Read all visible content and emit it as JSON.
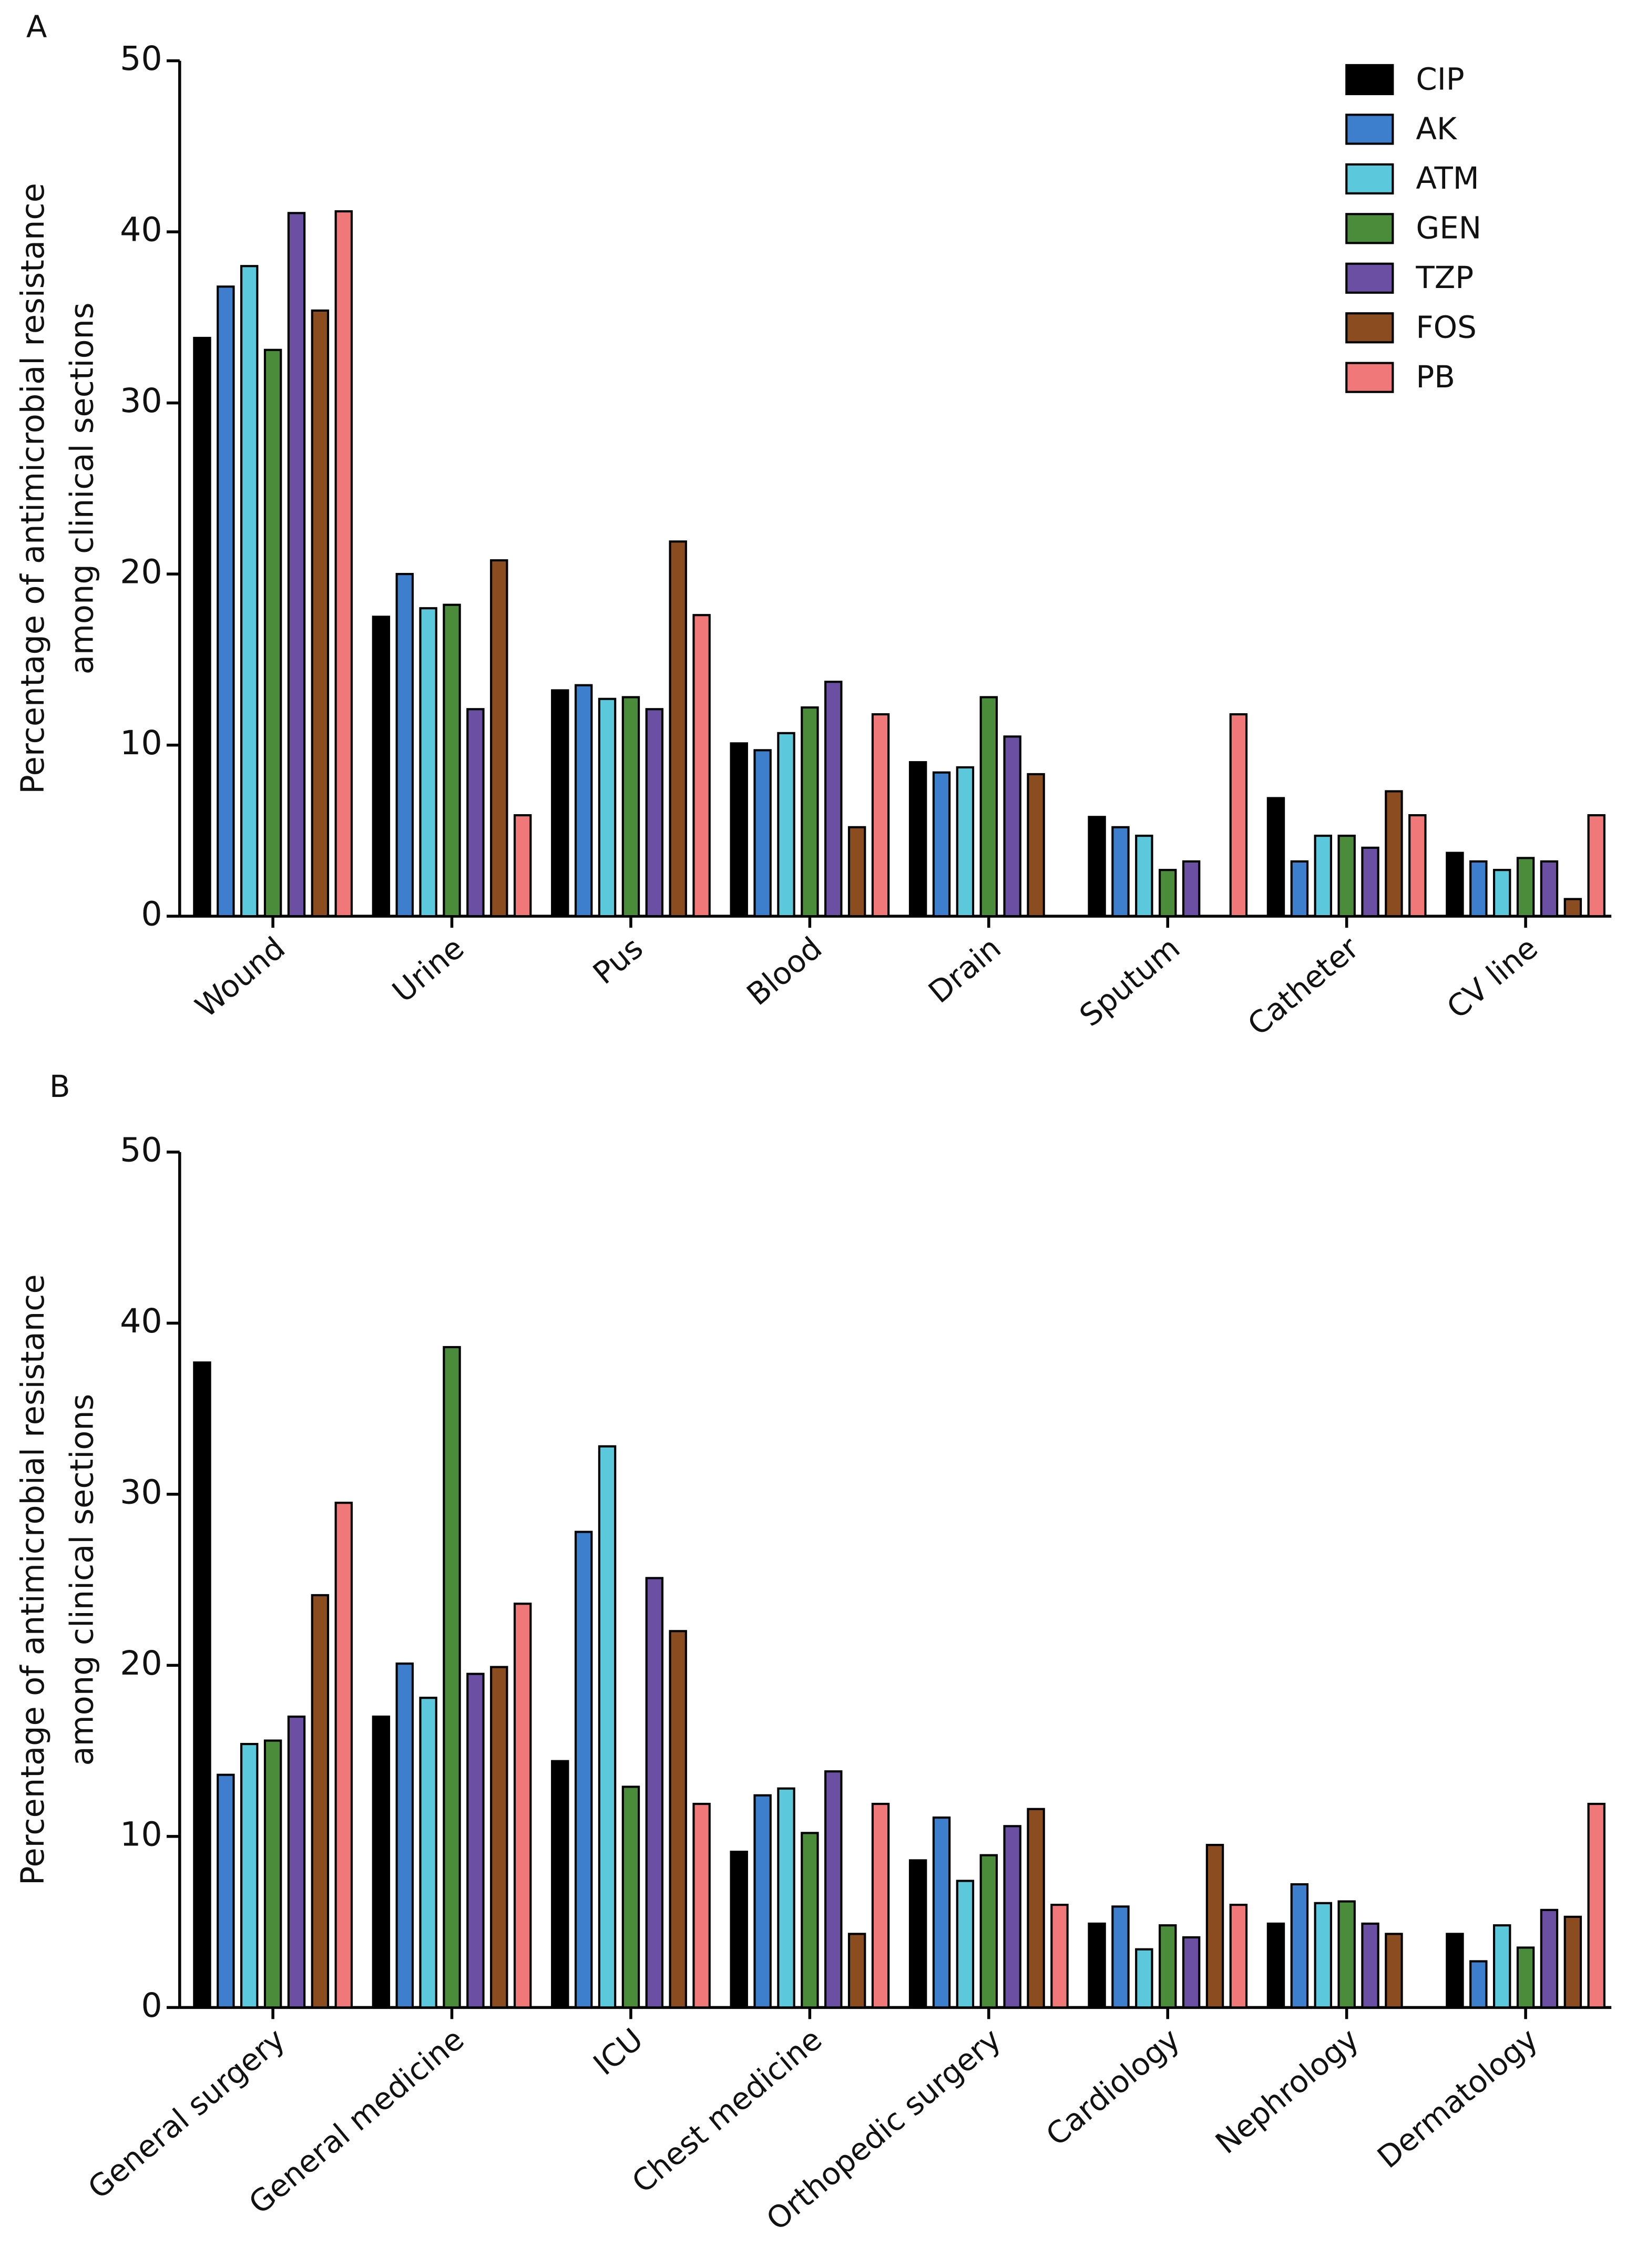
{
  "chart_data": [
    {
      "type": "bar",
      "label": "A",
      "ylabel": [
        "Percentage of antimicrobial resistance",
        "among clinical sections"
      ],
      "categories": [
        "Wound",
        "Urine",
        "Pus",
        "Blood",
        "Drain",
        "Sputum",
        "Catheter",
        "CV line"
      ],
      "ylim": [
        0,
        50
      ],
      "yticks": [
        0,
        10,
        20,
        30,
        40,
        50
      ],
      "legend": "top-right",
      "series": [
        {
          "name": "CIP",
          "color": "#000000",
          "values": [
            33.8,
            17.5,
            13.2,
            10.1,
            9.0,
            5.8,
            6.9,
            3.7
          ]
        },
        {
          "name": "AK",
          "color": "#3d7fcc",
          "values": [
            36.8,
            20.0,
            13.5,
            9.7,
            8.4,
            5.2,
            3.2,
            3.2
          ]
        },
        {
          "name": "ATM",
          "color": "#5bc8db",
          "values": [
            38.0,
            18.0,
            12.7,
            10.7,
            8.7,
            4.7,
            4.7,
            2.7
          ]
        },
        {
          "name": "GEN",
          "color": "#4a8c3a",
          "values": [
            33.1,
            18.2,
            12.8,
            12.2,
            12.8,
            2.7,
            4.7,
            3.4
          ]
        },
        {
          "name": "TZP",
          "color": "#6a4fa3",
          "values": [
            41.1,
            12.1,
            12.1,
            13.7,
            10.5,
            3.2,
            4.0,
            3.2
          ]
        },
        {
          "name": "FOS",
          "color": "#8b4c1f",
          "values": [
            35.4,
            20.8,
            21.9,
            5.2,
            8.3,
            0,
            7.3,
            1.0
          ]
        },
        {
          "name": "PB",
          "color": "#f07878",
          "values": [
            41.2,
            5.9,
            17.6,
            11.8,
            0,
            11.8,
            5.9,
            5.9
          ]
        }
      ]
    },
    {
      "type": "bar",
      "label": "B",
      "ylabel": [
        "Percentage of antimicrobial resistance",
        "among clinical sections"
      ],
      "categories": [
        "General surgery",
        "General medicine",
        "ICU",
        "Chest medicine",
        "Orthopedic surgery",
        "Cardiology",
        "Nephrology",
        "Dermatology"
      ],
      "ylim": [
        0,
        50
      ],
      "yticks": [
        0,
        10,
        20,
        30,
        40,
        50
      ],
      "series": [
        {
          "name": "CIP",
          "color": "#000000",
          "values": [
            37.7,
            17.0,
            14.4,
            9.1,
            8.6,
            4.9,
            4.9,
            4.3
          ]
        },
        {
          "name": "AK",
          "color": "#3d7fcc",
          "values": [
            13.6,
            20.1,
            27.8,
            12.4,
            11.1,
            5.9,
            7.2,
            2.7
          ]
        },
        {
          "name": "ATM",
          "color": "#5bc8db",
          "values": [
            15.4,
            18.1,
            32.8,
            12.8,
            7.4,
            3.4,
            6.1,
            4.8
          ]
        },
        {
          "name": "GEN",
          "color": "#4a8c3a",
          "values": [
            15.6,
            38.6,
            12.9,
            10.2,
            8.9,
            4.8,
            6.2,
            3.5
          ]
        },
        {
          "name": "TZP",
          "color": "#6a4fa3",
          "values": [
            17.0,
            19.5,
            25.1,
            13.8,
            10.6,
            4.1,
            4.9,
            5.7
          ]
        },
        {
          "name": "FOS",
          "color": "#8b4c1f",
          "values": [
            24.1,
            19.9,
            22.0,
            4.3,
            11.6,
            9.5,
            4.3,
            5.3
          ]
        },
        {
          "name": "PB",
          "color": "#f07878",
          "values": [
            29.5,
            23.6,
            11.9,
            11.9,
            6.0,
            6.0,
            0,
            11.9
          ]
        }
      ]
    }
  ]
}
